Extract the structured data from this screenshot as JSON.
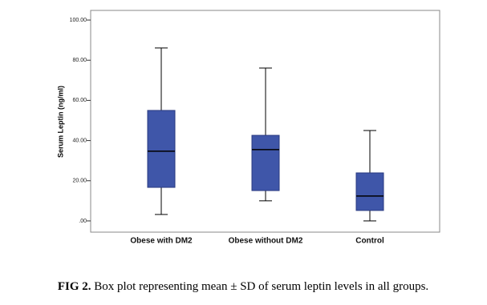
{
  "chart_data": {
    "type": "box",
    "ylabel": "Serum Leptin (ng/ml)",
    "categories": [
      "Obese with DM2",
      "Obese without DM2",
      "Control"
    ],
    "whisker_low": [
      3.2,
      10.0,
      0
    ],
    "q1": [
      16.7,
      15.1,
      5.2
    ],
    "median": [
      34.7,
      35.5,
      12.4
    ],
    "q3": [
      55.0,
      42.6,
      23.9
    ],
    "whisker_high": [
      86.1,
      76.1,
      45.0
    ],
    "color": "#3f56a9",
    "ylim": [
      -5.6,
      104.8
    ],
    "yticks": [
      {
        "value": 0,
        "label": ".00"
      },
      {
        "value": 20,
        "label": "20.00"
      },
      {
        "value": 40,
        "label": "40.00"
      },
      {
        "value": 60,
        "label": "60.00"
      },
      {
        "value": 80,
        "label": "80.00"
      },
      {
        "value": 100,
        "label": "100.00"
      }
    ],
    "caption_label": "FIG 2.",
    "caption": "Box plot representing mean ± SD of serum leptin levels in all groups."
  }
}
